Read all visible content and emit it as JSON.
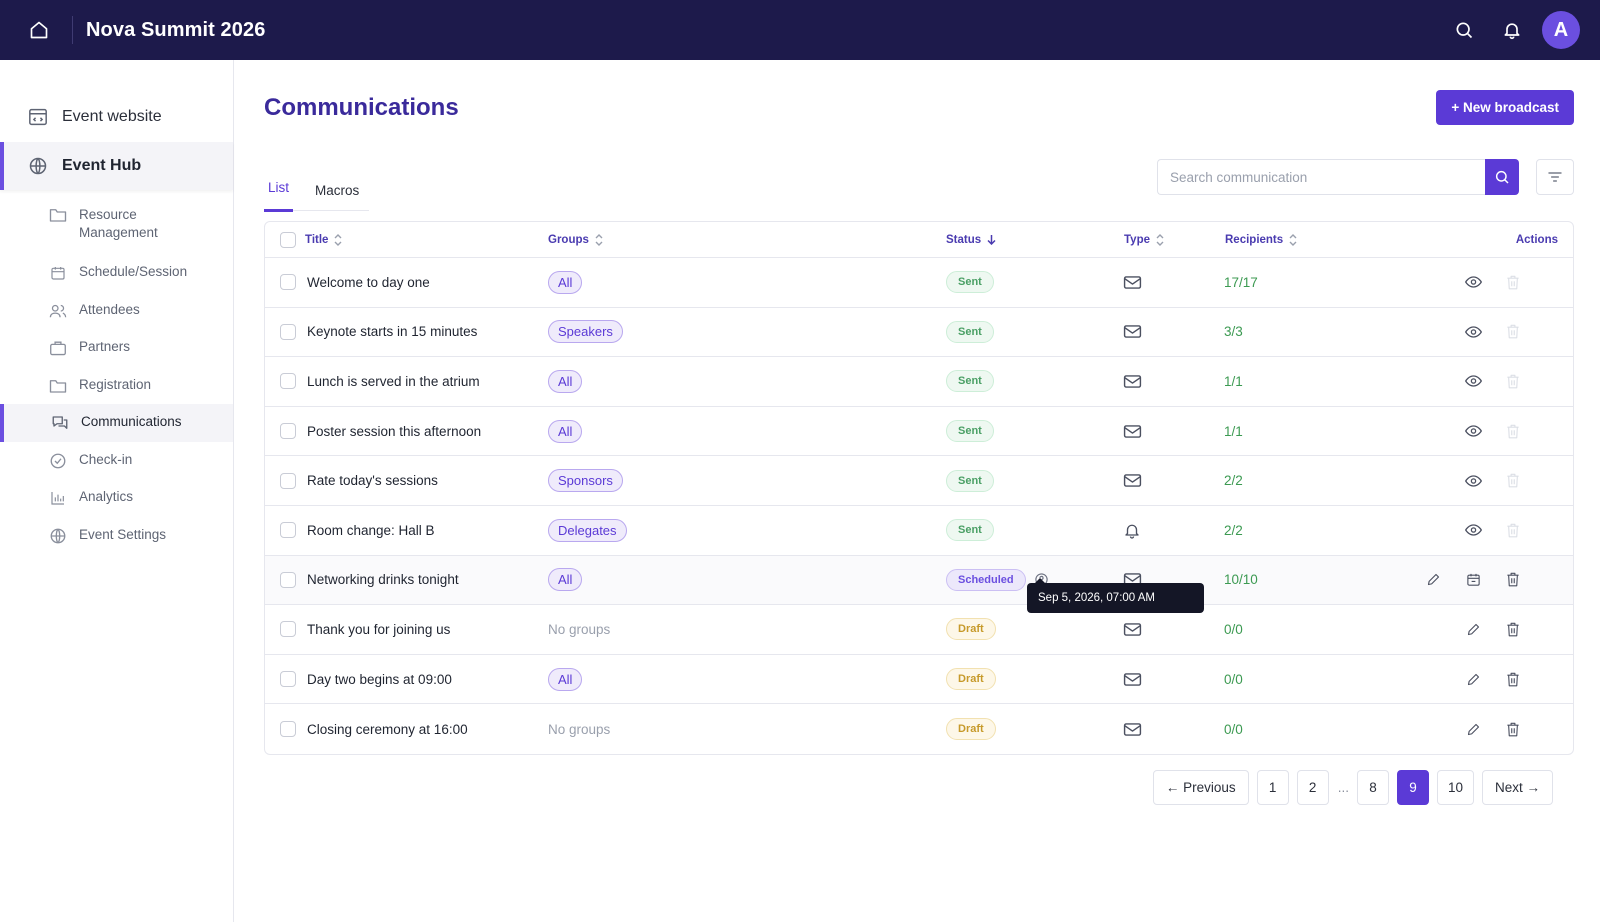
{
  "app": {
    "title": "Nova Summit 2026",
    "avatar_letter": "A",
    "accent": "#5b3ad6",
    "topbar_bg": "#1d1a4b"
  },
  "sidebar": {
    "top_items": [
      {
        "label": "Event website",
        "icon": "website-icon"
      },
      {
        "label": "Event Hub",
        "icon": "globe-icon",
        "active": true
      }
    ],
    "sub_items": [
      {
        "label": "Resource Management",
        "icon": "folder-icon"
      },
      {
        "label": "Schedule/Session",
        "icon": "calendar-icon"
      },
      {
        "label": "Attendees",
        "icon": "users-icon"
      },
      {
        "label": "Partners",
        "icon": "briefcase-icon"
      },
      {
        "label": "Registration",
        "icon": "folder-icon"
      },
      {
        "label": "Communications",
        "icon": "chat-icon",
        "active": true
      },
      {
        "label": "Check-in",
        "icon": "check-circle-icon"
      },
      {
        "label": "Analytics",
        "icon": "bar-chart-icon"
      },
      {
        "label": "Event Settings",
        "icon": "globe-icon"
      }
    ]
  },
  "page": {
    "title": "Communications",
    "new_button": "+ New broadcast",
    "tabs": [
      {
        "label": "List",
        "active": true
      },
      {
        "label": "Macros",
        "active": false
      }
    ],
    "search_placeholder": "Search communication"
  },
  "table": {
    "headers": {
      "title": "Title",
      "groups": "Groups",
      "status": "Status",
      "type": "Type",
      "recipients": "Recipients",
      "actions": "Actions"
    },
    "rows": [
      {
        "title": "Welcome to day one",
        "group": "All",
        "status": "Sent",
        "type": "email",
        "recipients": "17/17",
        "actions": [
          "view",
          "delete-disabled"
        ]
      },
      {
        "title": "Keynote starts in 15 minutes",
        "group": "Speakers",
        "status": "Sent",
        "type": "email",
        "recipients": "3/3",
        "actions": [
          "view",
          "delete-disabled"
        ]
      },
      {
        "title": "Lunch is served in the atrium",
        "group": "All",
        "status": "Sent",
        "type": "email",
        "recipients": "1/1",
        "actions": [
          "view",
          "delete-disabled"
        ]
      },
      {
        "title": "Poster session this afternoon",
        "group": "All",
        "status": "Sent",
        "type": "email",
        "recipients": "1/1",
        "actions": [
          "view",
          "delete-disabled"
        ]
      },
      {
        "title": "Rate today's sessions",
        "group": "Sponsors",
        "status": "Sent",
        "type": "email",
        "recipients": "2/2",
        "actions": [
          "view",
          "delete-disabled"
        ]
      },
      {
        "title": "Room change: Hall B",
        "group": "Delegates",
        "status": "Sent",
        "type": "push",
        "recipients": "2/2",
        "actions": [
          "view",
          "delete-disabled"
        ]
      },
      {
        "title": "Networking drinks tonight",
        "group": "All",
        "status": "Scheduled",
        "type": "email",
        "recipients": "10/10",
        "actions": [
          "edit",
          "schedule",
          "delete"
        ]
      },
      {
        "title": "Thank you for joining us",
        "group": "No groups",
        "status": "Draft",
        "type": "email",
        "recipients": "0/0",
        "actions": [
          "edit",
          "delete"
        ]
      },
      {
        "title": "Day two begins at 09:00",
        "group": "All",
        "status": "Draft",
        "type": "email",
        "recipients": "0/0",
        "actions": [
          "edit",
          "delete"
        ]
      },
      {
        "title": "Closing ceremony at 16:00",
        "group": "No groups",
        "status": "Draft",
        "type": "email",
        "recipients": "0/0",
        "actions": [
          "edit",
          "delete"
        ]
      }
    ],
    "tooltip": "Sep 5, 2026, 07:00 AM"
  },
  "pagination": {
    "previous": "← Previous",
    "next": "Next →",
    "pages": [
      "1",
      "2",
      "...",
      "8",
      "9",
      "10"
    ],
    "current": "9"
  }
}
